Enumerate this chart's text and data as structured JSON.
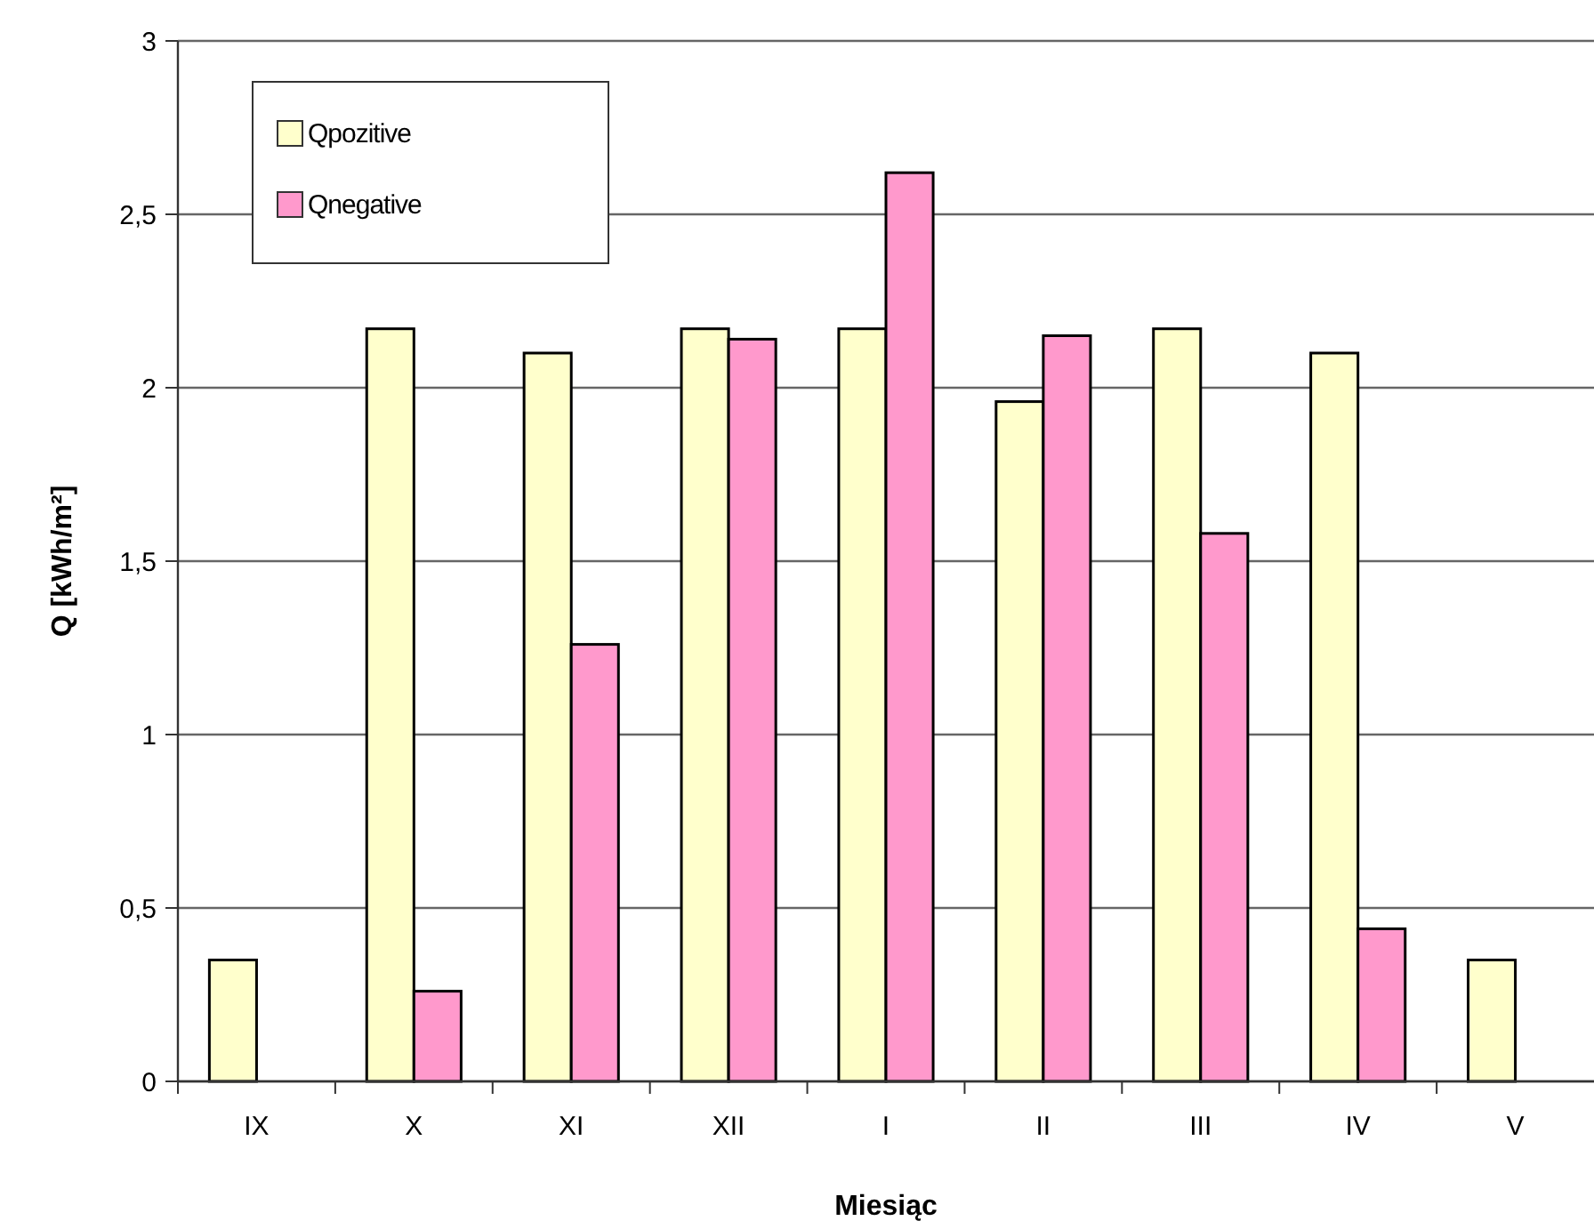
{
  "chart_data": {
    "type": "bar",
    "xlabel": "Miesiąc",
    "ylabel": "Q [kWh/m²]",
    "categories": [
      "IX",
      "X",
      "XI",
      "XII",
      "I",
      "II",
      "III",
      "IV",
      "V"
    ],
    "series": [
      {
        "name": "Qpozitive",
        "color": "#ffffcc",
        "values": [
          0.35,
          2.17,
          2.1,
          2.17,
          2.17,
          1.96,
          2.17,
          2.1,
          0.35
        ]
      },
      {
        "name": "Qnegative",
        "color": "#ff99cc",
        "values": [
          null,
          0.26,
          1.26,
          2.14,
          2.62,
          2.15,
          1.58,
          0.44,
          null
        ]
      }
    ],
    "ylim": [
      0,
      3
    ],
    "yticks": [
      0,
      {
        "value": 0.5,
        "label": "0,5"
      },
      1,
      {
        "value": 1.5,
        "label": "1,5"
      },
      2,
      {
        "value": 2.5,
        "label": "2,5"
      },
      3
    ],
    "grid": "y",
    "legend": "top left"
  }
}
